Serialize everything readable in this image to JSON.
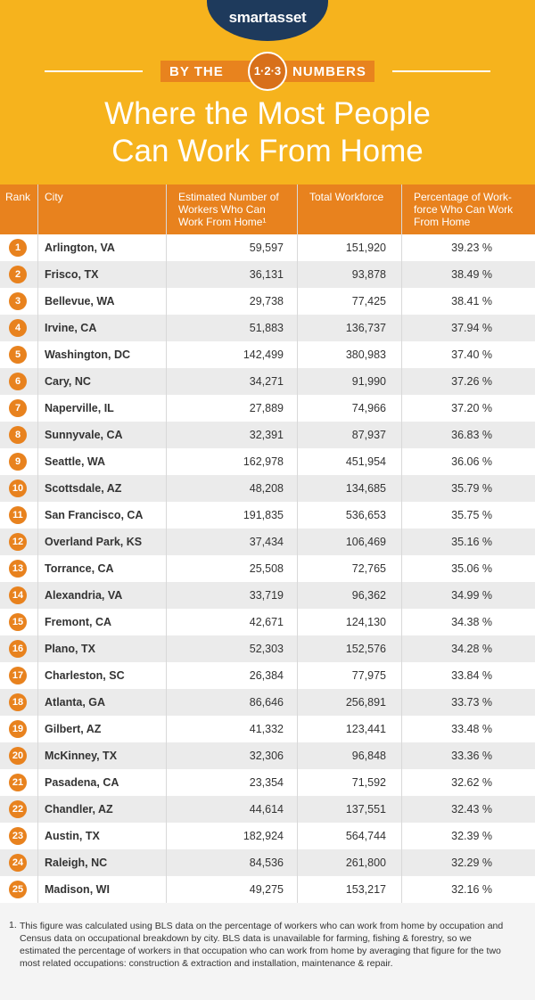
{
  "brand": "smartasset",
  "banner": {
    "left": "BY THE",
    "middle": "1·2·3",
    "right": "NUMBERS"
  },
  "title_lines": [
    "Where the Most People",
    "Can Work From Home"
  ],
  "table": {
    "headers": [
      "Rank",
      "City",
      "Estimated Number of Workers Who Can Work From Home¹",
      "Total Workforce",
      "Percentage of Work-force Who Can Work From Home"
    ],
    "rows": [
      [
        1,
        "Arlington, VA",
        "59,597",
        "151,920",
        "39.23 %"
      ],
      [
        2,
        "Frisco, TX",
        "36,131",
        "93,878",
        "38.49 %"
      ],
      [
        3,
        "Bellevue, WA",
        "29,738",
        "77,425",
        "38.41 %"
      ],
      [
        4,
        "Irvine, CA",
        "51,883",
        "136,737",
        "37.94 %"
      ],
      [
        5,
        "Washington, DC",
        "142,499",
        "380,983",
        "37.40 %"
      ],
      [
        6,
        "Cary, NC",
        "34,271",
        "91,990",
        "37.26 %"
      ],
      [
        7,
        "Naperville, IL",
        "27,889",
        "74,966",
        "37.20 %"
      ],
      [
        8,
        "Sunnyvale, CA",
        "32,391",
        "87,937",
        "36.83 %"
      ],
      [
        9,
        "Seattle, WA",
        "162,978",
        "451,954",
        "36.06 %"
      ],
      [
        10,
        "Scottsdale, AZ",
        "48,208",
        "134,685",
        "35.79 %"
      ],
      [
        11,
        "San Francisco, CA",
        "191,835",
        "536,653",
        "35.75 %"
      ],
      [
        12,
        "Overland Park, KS",
        "37,434",
        "106,469",
        "35.16 %"
      ],
      [
        13,
        "Torrance, CA",
        "25,508",
        "72,765",
        "35.06 %"
      ],
      [
        14,
        "Alexandria, VA",
        "33,719",
        "96,362",
        "34.99 %"
      ],
      [
        15,
        "Fremont, CA",
        "42,671",
        "124,130",
        "34.38 %"
      ],
      [
        16,
        "Plano, TX",
        "52,303",
        "152,576",
        "34.28 %"
      ],
      [
        17,
        "Charleston, SC",
        "26,384",
        "77,975",
        "33.84 %"
      ],
      [
        18,
        "Atlanta, GA",
        "86,646",
        "256,891",
        "33.73 %"
      ],
      [
        19,
        "Gilbert, AZ",
        "41,332",
        "123,441",
        "33.48 %"
      ],
      [
        20,
        "McKinney, TX",
        "32,306",
        "96,848",
        "33.36 %"
      ],
      [
        21,
        "Pasadena, CA",
        "23,354",
        "71,592",
        "32.62 %"
      ],
      [
        22,
        "Chandler, AZ",
        "44,614",
        "137,551",
        "32.43 %"
      ],
      [
        23,
        "Austin, TX",
        "182,924",
        "564,744",
        "32.39 %"
      ],
      [
        24,
        "Raleigh, NC",
        "84,536",
        "261,800",
        "32.29 %"
      ],
      [
        25,
        "Madison, WI",
        "49,275",
        "153,217",
        "32.16 %"
      ]
    ]
  },
  "footnote": {
    "marker": "1.",
    "text": "This figure was calculated using BLS data on the percentage of workers who can work from home by occupation and Census data on occupational breakdown by city. BLS data is unavailable for farming, fishing & forestry, so we estimated the percentage of workers in that occupation who can work from home by averaging that figure for the two most related occupations: construction & extraction and installation, maintenance & repair."
  }
}
